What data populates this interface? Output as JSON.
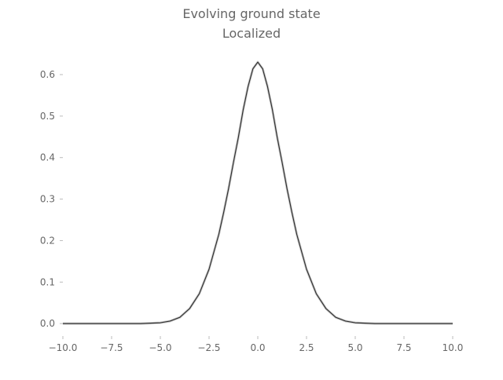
{
  "chart_data": {
    "type": "line",
    "title": "Evolving ground state",
    "subtitle": "Localized",
    "xlabel": "",
    "ylabel": "",
    "xlim": [
      -10.0,
      10.0
    ],
    "ylim": [
      -0.03,
      0.67
    ],
    "x_ticks": [
      -10.0,
      -7.5,
      -5.0,
      -2.5,
      0.0,
      2.5,
      5.0,
      7.5,
      10.0
    ],
    "x_tick_labels": [
      "−10.0",
      "−7.5",
      "−5.0",
      "−2.5",
      "0.0",
      "2.5",
      "5.0",
      "7.5",
      "10.0"
    ],
    "y_ticks": [
      0.0,
      0.1,
      0.2,
      0.3,
      0.4,
      0.5,
      0.6
    ],
    "y_tick_labels": [
      "0.0",
      "0.1",
      "0.2",
      "0.3",
      "0.4",
      "0.5",
      "0.6"
    ],
    "grid": false,
    "series": [
      {
        "color": "#333333",
        "x": [
          -10.0,
          -9.0,
          -8.0,
          -7.0,
          -6.0,
          -5.5,
          -5.0,
          -4.5,
          -4.0,
          -3.5,
          -3.0,
          -2.5,
          -2.0,
          -1.75,
          -1.5,
          -1.25,
          -1.0,
          -0.75,
          -0.5,
          -0.25,
          0.0,
          0.25,
          0.5,
          0.75,
          1.0,
          1.25,
          1.5,
          1.75,
          2.0,
          2.5,
          3.0,
          3.5,
          4.0,
          4.5,
          5.0,
          5.5,
          6.0,
          7.0,
          8.0,
          9.0,
          10.0
        ],
        "y": [
          0.0,
          0.0,
          0.0,
          0.0,
          0.0,
          0.001,
          0.002,
          0.006,
          0.015,
          0.036,
          0.072,
          0.131,
          0.215,
          0.268,
          0.325,
          0.388,
          0.448,
          0.515,
          0.571,
          0.614,
          0.63,
          0.614,
          0.571,
          0.515,
          0.448,
          0.388,
          0.325,
          0.268,
          0.215,
          0.131,
          0.072,
          0.036,
          0.015,
          0.006,
          0.002,
          0.001,
          0.0,
          0.0,
          0.0,
          0.0,
          0.0
        ]
      }
    ]
  }
}
